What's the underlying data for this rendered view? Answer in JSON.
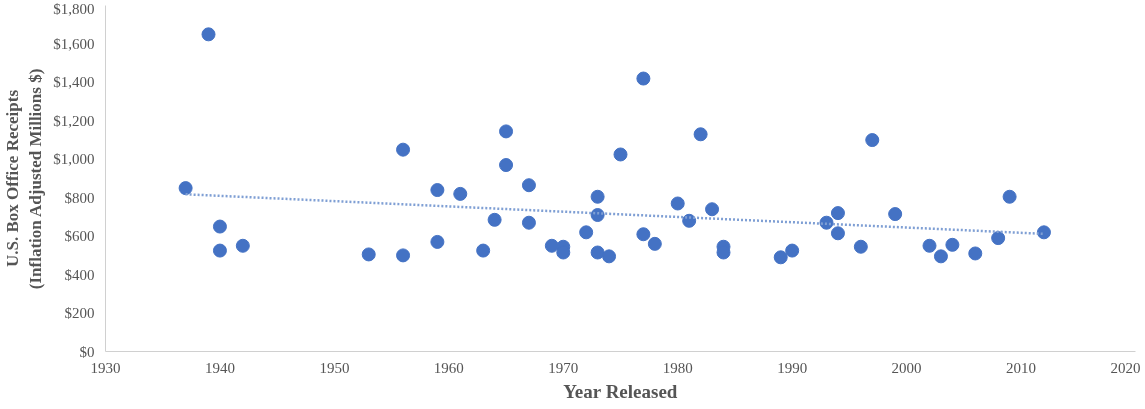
{
  "chart_data": {
    "type": "scatter",
    "xlabel": "Year Released",
    "ylabel": "U.S. Box Office Receipts (Inflation Adjusted Millions $)",
    "xlim": [
      1930,
      2020
    ],
    "xticks": [
      1930,
      1940,
      1950,
      1960,
      1970,
      1980,
      1990,
      2000,
      2010,
      2020
    ],
    "ylim": [
      0,
      1800
    ],
    "yticks": [
      {
        "value": 0,
        "label": "$0"
      },
      {
        "value": 200,
        "label": "$200"
      },
      {
        "value": 400,
        "label": "$400"
      },
      {
        "value": 600,
        "label": "$600"
      },
      {
        "value": 800,
        "label": "$800"
      },
      {
        "value": 1000,
        "label": "$1,000"
      },
      {
        "value": 1200,
        "label": "$1,200"
      },
      {
        "value": 1400,
        "label": "$1,400"
      },
      {
        "value": 1600,
        "label": "$1,600"
      },
      {
        "value": 1800,
        "label": "$1,800"
      }
    ],
    "grid": false,
    "marker": "circle",
    "series": [
      {
        "color": "#4472c4",
        "x": [
          1937,
          1939,
          1940,
          1940,
          1942,
          1953,
          1956,
          1956,
          1959,
          1959,
          1961,
          1963,
          1964,
          1965,
          1965,
          1967,
          1967,
          1969,
          1970,
          1970,
          1972,
          1973,
          1973,
          1973,
          1974,
          1975,
          1977,
          1977,
          1978,
          1980,
          1981,
          1982,
          1983,
          1984,
          1984,
          1989,
          1990,
          1993,
          1994,
          1994,
          1996,
          1997,
          1999,
          2002,
          2003,
          2004,
          2006,
          2008,
          2009,
          2012
        ],
        "values": [
          850,
          1650,
          650,
          525,
          550,
          505,
          500,
          1050,
          840,
          570,
          820,
          525,
          685,
          1145,
          970,
          865,
          670,
          550,
          545,
          515,
          620,
          805,
          710,
          515,
          495,
          1025,
          1420,
          610,
          560,
          770,
          680,
          1130,
          740,
          545,
          515,
          490,
          525,
          670,
          720,
          615,
          545,
          1100,
          715,
          550,
          495,
          555,
          510,
          590,
          805,
          620
        ]
      },
      {
        "type": "line",
        "color": "#7f9fd4",
        "line_style": "dotted",
        "marker": "none",
        "x": [
          1937,
          2012
        ],
        "values": [
          818,
          612
        ]
      }
    ]
  }
}
